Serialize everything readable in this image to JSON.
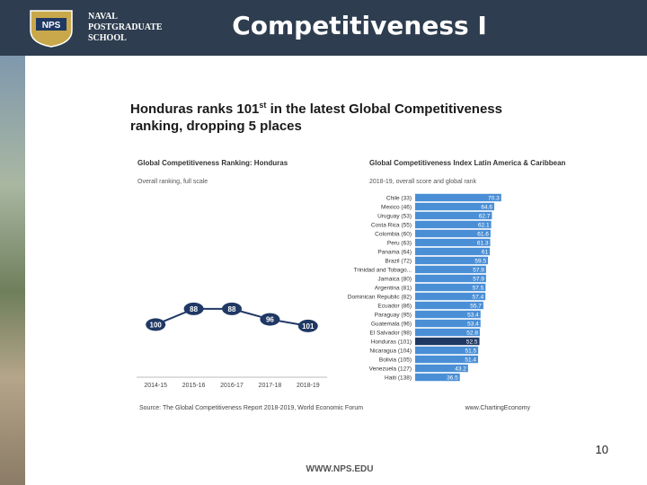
{
  "header": {
    "logo_text": [
      "NAVAL",
      "POSTGRADUATE",
      "SCHOOL"
    ],
    "title": "Competitiveness I"
  },
  "headline": {
    "text_before": "Honduras ranks 101",
    "superscript": "st",
    "text_after": " in the latest Global Competitiveness ranking, dropping 5 places"
  },
  "chart_data": [
    {
      "type": "line",
      "title": "Global Competitiveness Ranking: Honduras",
      "subtitle": "Overall ranking, full scale",
      "categories": [
        "2014-15",
        "2015-16",
        "2016-17",
        "2017-18",
        "2018-19"
      ],
      "values": [
        100,
        88,
        88,
        96,
        101
      ],
      "color": "#1f3864",
      "ylim": [
        0,
        140
      ],
      "y_inverted": true
    },
    {
      "type": "barh",
      "title": "Global Competitiveness Index Latin America & Caribbean",
      "subtitle": "2018-19, overall score and global rank",
      "categories": [
        "Chile (33)",
        "Mexico (46)",
        "Uruguay (53)",
        "Costa Rica (55)",
        "Colombia (60)",
        "Peru (63)",
        "Panama (64)",
        "Brazil (72)",
        "Trinidad and Tobago...",
        "Jamaica (80)",
        "Argentina (81)",
        "Dominican Republic (82)",
        "Ecuador (86)",
        "Paraguay (95)",
        "Guatemala (96)",
        "El Salvador (98)",
        "Honduras (101)",
        "Nicaragua (104)",
        "Bolivia (105)",
        "Venezuela (127)",
        "Haiti (138)"
      ],
      "values": [
        70.3,
        64.6,
        62.7,
        62.1,
        61.6,
        61.3,
        61.0,
        59.5,
        57.9,
        57.9,
        57.5,
        57.4,
        55.7,
        53.4,
        53.4,
        52.8,
        52.5,
        51.5,
        51.4,
        43.2,
        36.5
      ],
      "color": "#4a8fd6",
      "highlight": {
        "category": "Honduras (101)",
        "color": "#1f3864"
      },
      "xlim": [
        0,
        80
      ]
    }
  ],
  "source": "Source: The Global Competitiveness Report 2018-2019, World Economic Forum",
  "credit": "www.ChartingEconomy",
  "page_number": "10",
  "footer": "WWW.NPS.EDU"
}
